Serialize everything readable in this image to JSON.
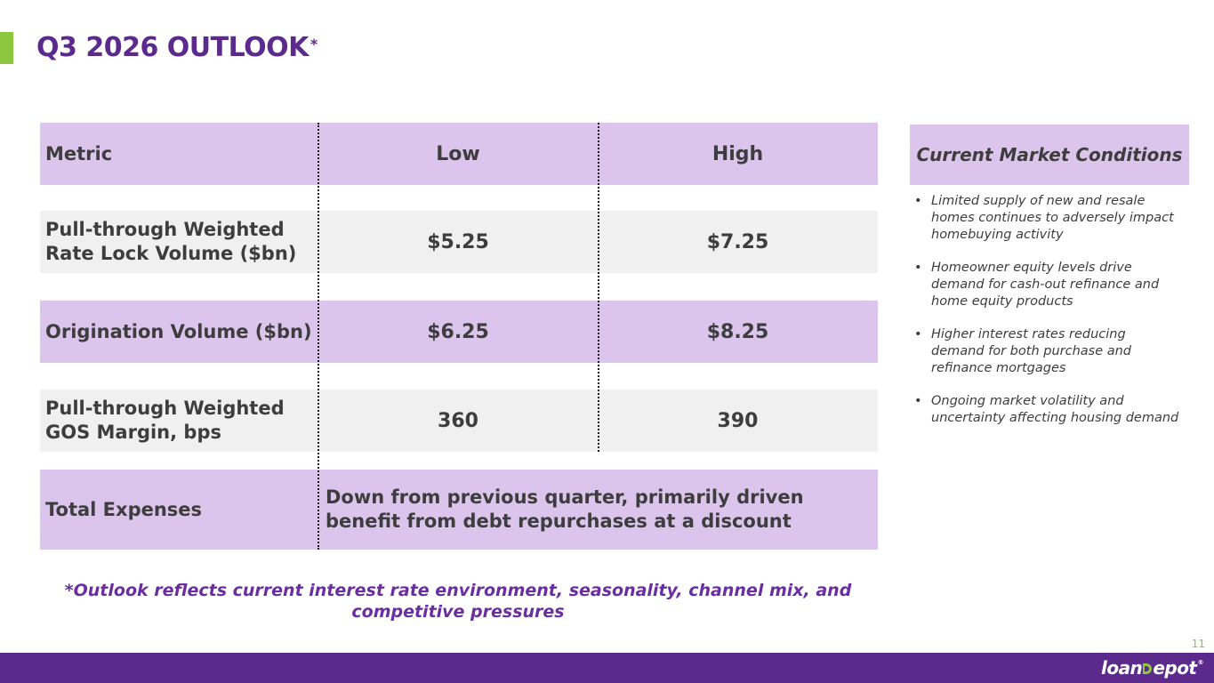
{
  "title": {
    "text": "Q3 2026 OUTLOOK",
    "marker": "*"
  },
  "table": {
    "headers": [
      "Metric",
      "Low",
      "High"
    ],
    "rows": [
      {
        "metric": "Pull-through Weighted Rate Lock Volume ($bn)",
        "low": "$5.25",
        "high": "$7.25"
      },
      {
        "metric": "Origination Volume ($bn)",
        "low": "$6.25",
        "high": "$8.25"
      },
      {
        "metric": "Pull-through Weighted GOS Margin, bps",
        "low": "360",
        "high": "390"
      }
    ],
    "total_expenses": {
      "metric": "Total Expenses",
      "description": "Down from previous quarter, primarily driven benefit from debt repurchases at a discount"
    }
  },
  "market_conditions": {
    "header": "Current Market Conditions",
    "bullets": [
      "Limited supply of new and resale homes continues to adversely impact homebuying activity",
      "Homeowner equity levels drive demand for cash-out refinance and home equity products",
      "Higher interest rates reducing demand for both purchase and refinance mortgages",
      "Ongoing market volatility and uncertainty affecting housing demand"
    ]
  },
  "footnote": "*Outlook reflects current interest rate environment, seasonality, channel mix, and competitive pressures",
  "page_number": "11",
  "logo": {
    "left": "loan",
    "right": "epot",
    "registered": "®"
  },
  "colors": {
    "title_purple": "#5b2a8c",
    "accent_green": "#8dc63f",
    "lavender": "#dbc5ec",
    "light_grey": "#f0f0f0",
    "footnote_purple": "#6a2ea0"
  }
}
